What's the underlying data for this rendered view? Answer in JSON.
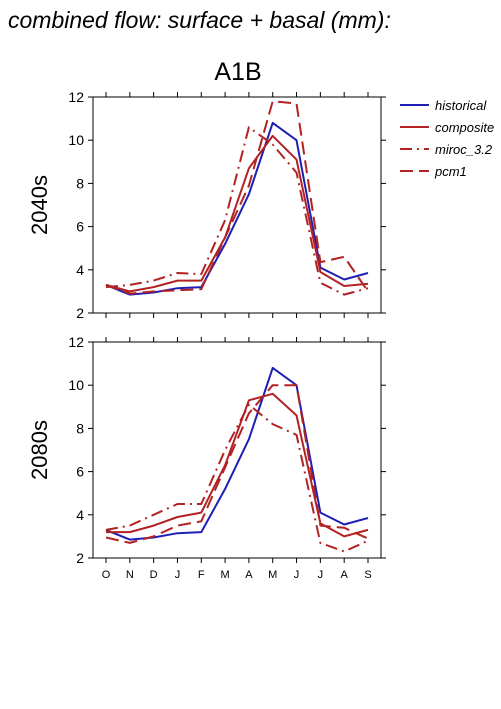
{
  "figure": {
    "title": "combined flow: surface + basal (mm):",
    "scenario": "A1B"
  },
  "colors": {
    "historical": "#1f1fb4",
    "composite": "#b22222",
    "miroc_3.2": "#b22222",
    "pcm1": "#b22222"
  },
  "chart_data": [
    {
      "type": "line",
      "title": "A1B",
      "ylabel": "2040s",
      "categories": [
        "O",
        "N",
        "D",
        "J",
        "F",
        "M",
        "A",
        "M",
        "J",
        "J",
        "A",
        "S"
      ],
      "ylim": [
        2,
        12
      ],
      "yticks": [
        2,
        4,
        6,
        8,
        10,
        12
      ],
      "legend_position": "right",
      "series": [
        {
          "name": "historical",
          "style": "solid",
          "values": [
            3.3,
            2.85,
            2.95,
            3.15,
            3.2,
            5.2,
            7.5,
            10.8,
            10.0,
            4.1,
            3.55,
            3.85
          ]
        },
        {
          "name": "composite",
          "style": "solid",
          "values": [
            3.3,
            3.0,
            3.2,
            3.5,
            3.5,
            5.5,
            8.7,
            10.2,
            9.1,
            3.9,
            3.25,
            3.35
          ]
        },
        {
          "name": "miroc_3.2",
          "style": "dashdot",
          "values": [
            3.2,
            3.3,
            3.5,
            3.85,
            3.8,
            6.3,
            10.6,
            9.8,
            8.5,
            3.4,
            2.85,
            3.15
          ]
        },
        {
          "name": "pcm1",
          "style": "dashed",
          "values": [
            3.3,
            2.9,
            3.0,
            3.05,
            3.1,
            5.5,
            7.9,
            11.8,
            11.7,
            4.35,
            4.6,
            3.0
          ]
        }
      ]
    },
    {
      "type": "line",
      "ylabel": "2080s",
      "categories": [
        "O",
        "N",
        "D",
        "J",
        "F",
        "M",
        "A",
        "M",
        "J",
        "J",
        "A",
        "S"
      ],
      "ylim": [
        2,
        12
      ],
      "yticks": [
        2,
        4,
        6,
        8,
        10,
        12
      ],
      "series": [
        {
          "name": "historical",
          "style": "solid",
          "values": [
            3.3,
            2.85,
            2.95,
            3.15,
            3.2,
            5.2,
            7.5,
            10.8,
            10.0,
            4.1,
            3.55,
            3.85
          ]
        },
        {
          "name": "composite",
          "style": "solid",
          "values": [
            3.2,
            3.2,
            3.5,
            3.9,
            4.1,
            6.3,
            9.3,
            9.6,
            8.6,
            3.6,
            3.0,
            3.3
          ]
        },
        {
          "name": "miroc_3.2",
          "style": "dashdot",
          "values": [
            3.3,
            3.5,
            4.0,
            4.5,
            4.5,
            7.0,
            9.1,
            8.2,
            7.7,
            2.7,
            2.3,
            2.8
          ]
        },
        {
          "name": "pcm1",
          "style": "dashed",
          "values": [
            2.95,
            2.7,
            3.0,
            3.5,
            3.7,
            6.2,
            8.7,
            10.0,
            10.0,
            3.5,
            3.4,
            2.9
          ]
        }
      ]
    }
  ]
}
